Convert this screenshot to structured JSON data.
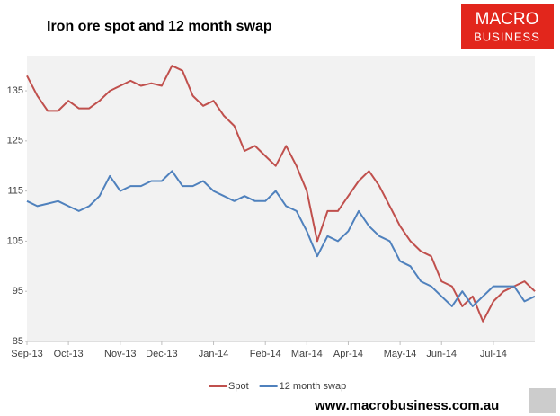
{
  "chart_data": {
    "type": "line",
    "title": "Iron ore spot and 12 month swap",
    "logo": {
      "top": "MACRO",
      "bottom": "BUSINESS"
    },
    "footer": "www.macrobusiness.com.au",
    "categories": [
      "Sep-13",
      null,
      null,
      null,
      "Oct-13",
      null,
      null,
      null,
      null,
      "Nov-13",
      null,
      null,
      null,
      "Dec-13",
      null,
      null,
      null,
      null,
      "Jan-14",
      null,
      null,
      null,
      null,
      "Feb-14",
      null,
      null,
      null,
      "Mar-14",
      null,
      null,
      null,
      "Apr-14",
      null,
      null,
      null,
      null,
      "May-14",
      null,
      null,
      null,
      "Jun-14",
      null,
      null,
      null,
      null,
      "Jul-14",
      null,
      null,
      null,
      null
    ],
    "series": [
      {
        "name": "Spot",
        "color": "#c0504d",
        "values": [
          138,
          134,
          131,
          131,
          133,
          131.5,
          131.5,
          133,
          135,
          136,
          137,
          136,
          136.5,
          136,
          140,
          139,
          134,
          132,
          133,
          130,
          128,
          123,
          124,
          122,
          120,
          124,
          120,
          115,
          105,
          111,
          111,
          114,
          117,
          119,
          116,
          112,
          108,
          105,
          103,
          102,
          97,
          96,
          92,
          94,
          89,
          93,
          95,
          96,
          97,
          95
        ]
      },
      {
        "name": "12 month swap",
        "color": "#4f81bd",
        "values": [
          113,
          112,
          112.5,
          113,
          112,
          111,
          112,
          114,
          118,
          115,
          116,
          116,
          117,
          117,
          119,
          116,
          116,
          117,
          115,
          114,
          113,
          114,
          113,
          113,
          115,
          112,
          111,
          107,
          102,
          106,
          105,
          107,
          111,
          108,
          106,
          105,
          101,
          100,
          97,
          96,
          94,
          92,
          95,
          92,
          94,
          96,
          96,
          96,
          93,
          94
        ]
      }
    ],
    "ylim": [
      85,
      142
    ],
    "yticks": [
      85,
      95,
      105,
      115,
      125,
      135
    ],
    "grid": false
  }
}
